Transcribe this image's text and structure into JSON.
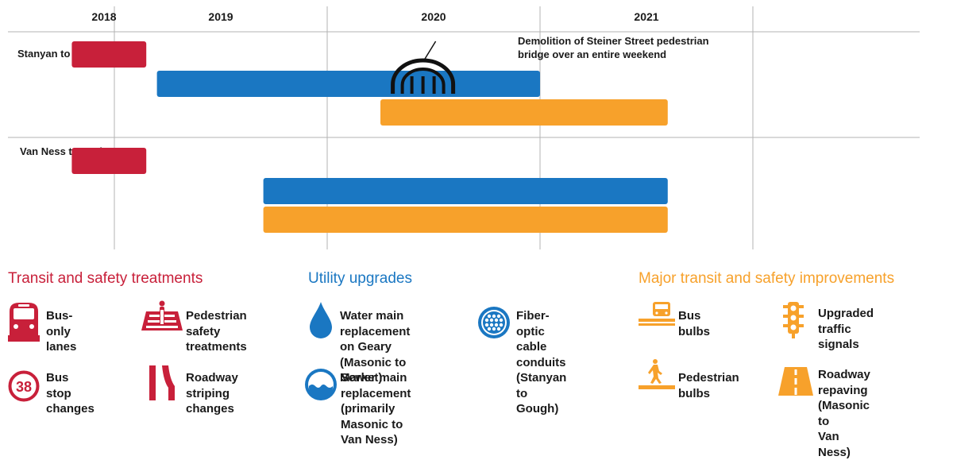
{
  "colors": {
    "red": "#c8203a",
    "blue": "#1a77c2",
    "orange": "#f7a12b",
    "grid": "#b3b3b3"
  },
  "chart_data": {
    "type": "gantt",
    "x_unit": "year",
    "xlim": [
      2018.0,
      2021.5
    ],
    "year_labels": [
      "2018",
      "2019",
      "2020",
      "2021"
    ],
    "rows": [
      {
        "label": "Stanyan to Van Ness",
        "bars": [
          {
            "category": "Transit and safety treatments",
            "start": 2018.3,
            "end": 2018.65
          },
          {
            "category": "Utility upgrades",
            "start": 2018.7,
            "end": 2020.5
          },
          {
            "category": "Major transit and safety improvements",
            "start": 2019.75,
            "end": 2021.1
          }
        ]
      },
      {
        "label": "Van Ness to Market",
        "bars": [
          {
            "category": "Transit and safety treatments",
            "start": 2018.3,
            "end": 2018.65
          },
          {
            "category": "Utility upgrades",
            "start": 2019.2,
            "end": 2021.1
          },
          {
            "category": "Major transit and safety improvements",
            "start": 2019.2,
            "end": 2021.1
          }
        ]
      }
    ],
    "annotations": [
      {
        "row": 0,
        "x": 2019.95,
        "icon": "bridge-icon",
        "text": [
          "Demolition of Steiner Street pedestrian",
          "bridge over an entire weekend"
        ]
      }
    ]
  },
  "legend": {
    "groups": [
      {
        "title": "Transit and safety treatments",
        "color": "#c8203a",
        "items": [
          {
            "icon": "bus-icon",
            "label": "Bus-only lanes"
          },
          {
            "icon": "pedestrian-crossing-icon",
            "label": "Pedestrian\nsafety treatments"
          },
          {
            "icon": "bus-stop-38-icon",
            "badge": "38",
            "label": "Bus stop\nchanges"
          },
          {
            "icon": "road-striping-icon",
            "label": "Roadway\nstriping changes"
          }
        ]
      },
      {
        "title": "Utility upgrades",
        "color": "#1a77c2",
        "items": [
          {
            "icon": "water-drop-icon",
            "label": "Water main\nreplacement on Geary\n(Masonic to Market)"
          },
          {
            "icon": "fiber-optic-icon",
            "label": "Fiber-optic\ncable conduits\n(Stanyan to Gough)"
          },
          {
            "icon": "sewer-icon",
            "label": "Sewer main\nreplacement (primarily\nMasonic to Van Ness)"
          }
        ]
      },
      {
        "title": "Major transit and safety improvements",
        "color": "#f7a12b",
        "items": [
          {
            "icon": "bus-bulb-icon",
            "label": "Bus bulbs"
          },
          {
            "icon": "traffic-signal-icon",
            "label": "Upgraded\ntraffic signals"
          },
          {
            "icon": "pedestrian-bulb-icon",
            "label": "Pedestrian\nbulbs"
          },
          {
            "icon": "road-repaving-icon",
            "label": "Roadway repaving\n(Masonic to\nVan Ness)"
          }
        ]
      }
    ]
  }
}
